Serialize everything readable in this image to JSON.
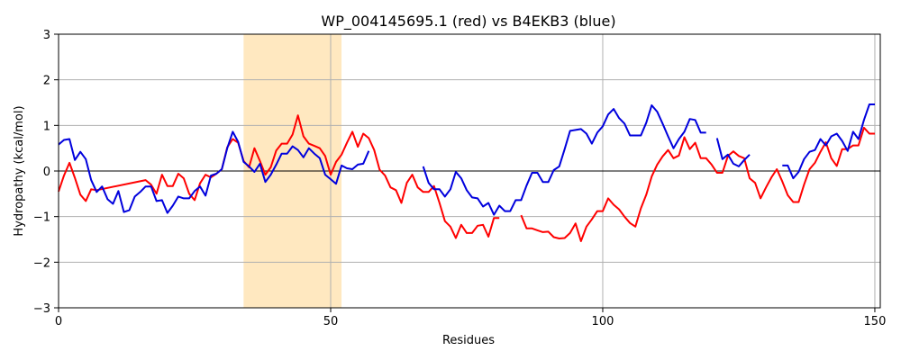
{
  "chart_data": {
    "type": "line",
    "title": "WP_004145695.1 (red) vs B4EKB3 (blue)",
    "xlabel": "Residues",
    "ylabel": "Hydropathy (kcal/mol)",
    "xlim": [
      0,
      151
    ],
    "ylim": [
      -3,
      3
    ],
    "xticks": [
      "0",
      "50",
      "100",
      "150"
    ],
    "yticks": [
      "−3",
      "−2",
      "−1",
      "0",
      "1",
      "2",
      "3"
    ],
    "grid": true,
    "highlight_region": {
      "x_start": 34,
      "x_end": 52,
      "color": "#ffe8c0"
    },
    "zero_line": true,
    "colors": {
      "red": "#ff0000",
      "blue": "#0000dd",
      "zero": "#000000",
      "grid": "#b0b0b0"
    },
    "series": [
      {
        "color": "#ff0000",
        "points": [
          [
            0,
            -0.45
          ],
          [
            1,
            -0.1
          ],
          [
            2,
            0.18
          ],
          [
            3,
            -0.15
          ],
          [
            4,
            -0.52
          ],
          [
            5,
            -0.66
          ],
          [
            6,
            -0.4
          ],
          [
            7,
            -0.42
          ],
          [
            16,
            -0.2
          ],
          [
            17,
            -0.3
          ],
          [
            18,
            -0.5
          ],
          [
            19,
            -0.08
          ],
          [
            20,
            -0.33
          ],
          [
            21,
            -0.33
          ],
          [
            22,
            -0.06
          ],
          [
            23,
            -0.16
          ],
          [
            24,
            -0.5
          ],
          [
            25,
            -0.64
          ],
          [
            26,
            -0.27
          ],
          [
            27,
            -0.08
          ],
          [
            28,
            -0.14
          ],
          [
            29,
            -0.06
          ],
          [
            30,
            0.04
          ],
          [
            31,
            0.52
          ],
          [
            32,
            0.7
          ],
          [
            33,
            0.62
          ],
          [
            34,
            0.22
          ],
          [
            35,
            0.08
          ],
          [
            36,
            0.5
          ],
          [
            37,
            0.22
          ],
          [
            38,
            -0.08
          ],
          [
            39,
            0.08
          ],
          [
            40,
            0.45
          ],
          [
            41,
            0.6
          ],
          [
            42,
            0.6
          ],
          [
            43,
            0.8
          ],
          [
            44,
            1.22
          ],
          [
            45,
            0.76
          ],
          [
            46,
            0.6
          ],
          [
            47,
            0.55
          ],
          [
            48,
            0.5
          ],
          [
            49,
            0.33
          ],
          [
            50,
            -0.08
          ],
          [
            51,
            0.2
          ],
          [
            52,
            0.36
          ],
          [
            53,
            0.62
          ],
          [
            54,
            0.86
          ],
          [
            55,
            0.53
          ],
          [
            56,
            0.82
          ],
          [
            57,
            0.72
          ],
          [
            58,
            0.46
          ],
          [
            59,
            0.03
          ],
          [
            60,
            -0.1
          ],
          [
            61,
            -0.36
          ],
          [
            62,
            -0.42
          ],
          [
            63,
            -0.7
          ],
          [
            64,
            -0.26
          ],
          [
            65,
            -0.08
          ],
          [
            66,
            -0.36
          ],
          [
            67,
            -0.46
          ],
          [
            68,
            -0.46
          ],
          [
            69,
            -0.33
          ],
          [
            70,
            -0.7
          ],
          [
            71,
            -1.1
          ],
          [
            72,
            -1.22
          ],
          [
            73,
            -1.47
          ],
          [
            74,
            -1.18
          ],
          [
            75,
            -1.36
          ],
          [
            76,
            -1.36
          ],
          [
            77,
            -1.2
          ],
          [
            78,
            -1.18
          ],
          [
            79,
            -1.44
          ],
          [
            80,
            -1.03
          ],
          [
            81,
            -1.03
          ],
          null,
          [
            85,
            -0.97
          ],
          [
            86,
            -1.26
          ],
          [
            87,
            -1.26
          ],
          [
            88,
            -1.3
          ],
          [
            89,
            -1.34
          ],
          [
            90,
            -1.33
          ],
          [
            91,
            -1.45
          ],
          [
            92,
            -1.48
          ],
          [
            93,
            -1.47
          ],
          [
            94,
            -1.36
          ],
          [
            95,
            -1.15
          ],
          [
            96,
            -1.54
          ],
          [
            97,
            -1.22
          ],
          [
            98,
            -1.06
          ],
          [
            99,
            -0.88
          ],
          [
            100,
            -0.88
          ],
          [
            101,
            -0.6
          ],
          [
            102,
            -0.74
          ],
          [
            103,
            -0.84
          ],
          [
            104,
            -1.0
          ],
          [
            105,
            -1.14
          ],
          [
            106,
            -1.22
          ],
          [
            107,
            -0.82
          ],
          [
            108,
            -0.52
          ],
          [
            109,
            -0.12
          ],
          [
            110,
            0.14
          ],
          [
            111,
            0.32
          ],
          [
            112,
            0.46
          ],
          [
            113,
            0.28
          ],
          [
            114,
            0.34
          ],
          [
            115,
            0.74
          ],
          [
            116,
            0.48
          ],
          [
            117,
            0.62
          ],
          [
            118,
            0.28
          ],
          [
            119,
            0.28
          ],
          [
            120,
            0.14
          ],
          [
            121,
            -0.04
          ],
          [
            122,
            -0.04
          ],
          [
            123,
            0.33
          ],
          [
            124,
            0.43
          ],
          [
            125,
            0.33
          ],
          [
            126,
            0.28
          ],
          [
            127,
            -0.16
          ],
          [
            128,
            -0.26
          ],
          [
            129,
            -0.6
          ],
          [
            130,
            -0.36
          ],
          [
            131,
            -0.14
          ],
          [
            132,
            0.04
          ],
          [
            133,
            -0.23
          ],
          [
            134,
            -0.53
          ],
          [
            135,
            -0.68
          ],
          [
            136,
            -0.68
          ],
          [
            137,
            -0.3
          ],
          [
            138,
            0.04
          ],
          [
            139,
            0.18
          ],
          [
            140,
            0.42
          ],
          [
            141,
            0.63
          ],
          [
            142,
            0.28
          ],
          [
            143,
            0.11
          ],
          [
            144,
            0.48
          ],
          [
            145,
            0.48
          ],
          [
            146,
            0.56
          ],
          [
            147,
            0.56
          ],
          [
            148,
            0.95
          ],
          [
            149,
            0.82
          ],
          [
            150,
            0.82
          ]
        ]
      },
      {
        "color": "#0000dd",
        "points": [
          [
            0,
            0.58
          ],
          [
            1,
            0.68
          ],
          [
            2,
            0.7
          ],
          [
            3,
            0.24
          ],
          [
            4,
            0.42
          ],
          [
            5,
            0.26
          ],
          [
            6,
            -0.2
          ],
          [
            7,
            -0.46
          ],
          [
            8,
            -0.34
          ],
          [
            9,
            -0.62
          ],
          [
            10,
            -0.72
          ],
          [
            11,
            -0.44
          ],
          [
            12,
            -0.9
          ],
          [
            13,
            -0.86
          ],
          [
            14,
            -0.56
          ],
          [
            15,
            -0.46
          ],
          [
            16,
            -0.34
          ],
          [
            17,
            -0.34
          ],
          [
            18,
            -0.66
          ],
          [
            19,
            -0.64
          ],
          [
            20,
            -0.92
          ],
          [
            21,
            -0.76
          ],
          [
            22,
            -0.56
          ],
          [
            23,
            -0.6
          ],
          [
            24,
            -0.6
          ],
          [
            25,
            -0.44
          ],
          [
            26,
            -0.34
          ],
          [
            27,
            -0.54
          ],
          [
            28,
            -0.1
          ],
          [
            29,
            -0.06
          ],
          [
            30,
            0.04
          ],
          [
            31,
            0.5
          ],
          [
            32,
            0.86
          ],
          [
            33,
            0.64
          ],
          [
            34,
            0.2
          ],
          [
            35,
            0.1
          ],
          [
            36,
            -0.02
          ],
          [
            37,
            0.16
          ],
          [
            38,
            -0.24
          ],
          [
            39,
            -0.08
          ],
          [
            40,
            0.14
          ],
          [
            41,
            0.38
          ],
          [
            42,
            0.38
          ],
          [
            43,
            0.54
          ],
          [
            44,
            0.46
          ],
          [
            45,
            0.3
          ],
          [
            46,
            0.5
          ],
          [
            47,
            0.38
          ],
          [
            48,
            0.28
          ],
          [
            49,
            -0.08
          ],
          [
            50,
            -0.18
          ],
          [
            51,
            -0.28
          ],
          [
            52,
            0.12
          ],
          [
            53,
            0.06
          ],
          [
            54,
            0.04
          ],
          [
            55,
            0.14
          ],
          [
            56,
            0.16
          ],
          [
            57,
            0.44
          ],
          null,
          [
            67,
            0.1
          ],
          [
            68,
            -0.26
          ],
          [
            69,
            -0.4
          ],
          [
            70,
            -0.4
          ],
          [
            71,
            -0.56
          ],
          [
            72,
            -0.4
          ],
          [
            73,
            -0.02
          ],
          [
            74,
            -0.16
          ],
          [
            75,
            -0.42
          ],
          [
            76,
            -0.58
          ],
          [
            77,
            -0.6
          ],
          [
            78,
            -0.78
          ],
          [
            79,
            -0.7
          ],
          [
            80,
            -0.96
          ],
          [
            81,
            -0.76
          ],
          [
            82,
            -0.88
          ],
          [
            83,
            -0.88
          ],
          [
            84,
            -0.64
          ],
          [
            85,
            -0.64
          ],
          [
            86,
            -0.32
          ],
          [
            87,
            -0.04
          ],
          [
            88,
            -0.04
          ],
          [
            89,
            -0.24
          ],
          [
            90,
            -0.24
          ],
          [
            91,
            0.02
          ],
          [
            92,
            0.1
          ],
          [
            93,
            0.48
          ],
          [
            94,
            0.88
          ],
          [
            95,
            0.9
          ],
          [
            96,
            0.92
          ],
          [
            97,
            0.82
          ],
          [
            98,
            0.6
          ],
          [
            99,
            0.84
          ],
          [
            100,
            0.98
          ],
          [
            101,
            1.24
          ],
          [
            102,
            1.36
          ],
          [
            103,
            1.16
          ],
          [
            104,
            1.04
          ],
          [
            105,
            0.78
          ],
          [
            106,
            0.78
          ],
          [
            107,
            0.78
          ],
          [
            108,
            1.06
          ],
          [
            109,
            1.44
          ],
          [
            110,
            1.3
          ],
          [
            111,
            1.04
          ],
          [
            112,
            0.76
          ],
          [
            113,
            0.5
          ],
          [
            114,
            0.7
          ],
          [
            115,
            0.86
          ],
          [
            116,
            1.14
          ],
          [
            117,
            1.12
          ],
          [
            118,
            0.84
          ],
          [
            119,
            0.84
          ],
          null,
          [
            121,
            0.72
          ],
          [
            122,
            0.26
          ],
          [
            123,
            0.36
          ],
          [
            124,
            0.16
          ],
          [
            125,
            0.1
          ],
          [
            126,
            0.24
          ],
          [
            127,
            0.36
          ],
          null,
          [
            133,
            0.12
          ],
          [
            134,
            0.12
          ],
          [
            135,
            -0.16
          ],
          [
            136,
            -0.02
          ],
          [
            137,
            0.26
          ],
          [
            138,
            0.42
          ],
          [
            139,
            0.46
          ],
          [
            140,
            0.7
          ],
          [
            141,
            0.56
          ],
          [
            142,
            0.76
          ],
          [
            143,
            0.82
          ],
          [
            144,
            0.66
          ],
          [
            145,
            0.44
          ],
          [
            146,
            0.86
          ],
          [
            147,
            0.7
          ],
          [
            148,
            1.12
          ],
          [
            149,
            1.46
          ],
          [
            150,
            1.46
          ]
        ]
      }
    ]
  }
}
